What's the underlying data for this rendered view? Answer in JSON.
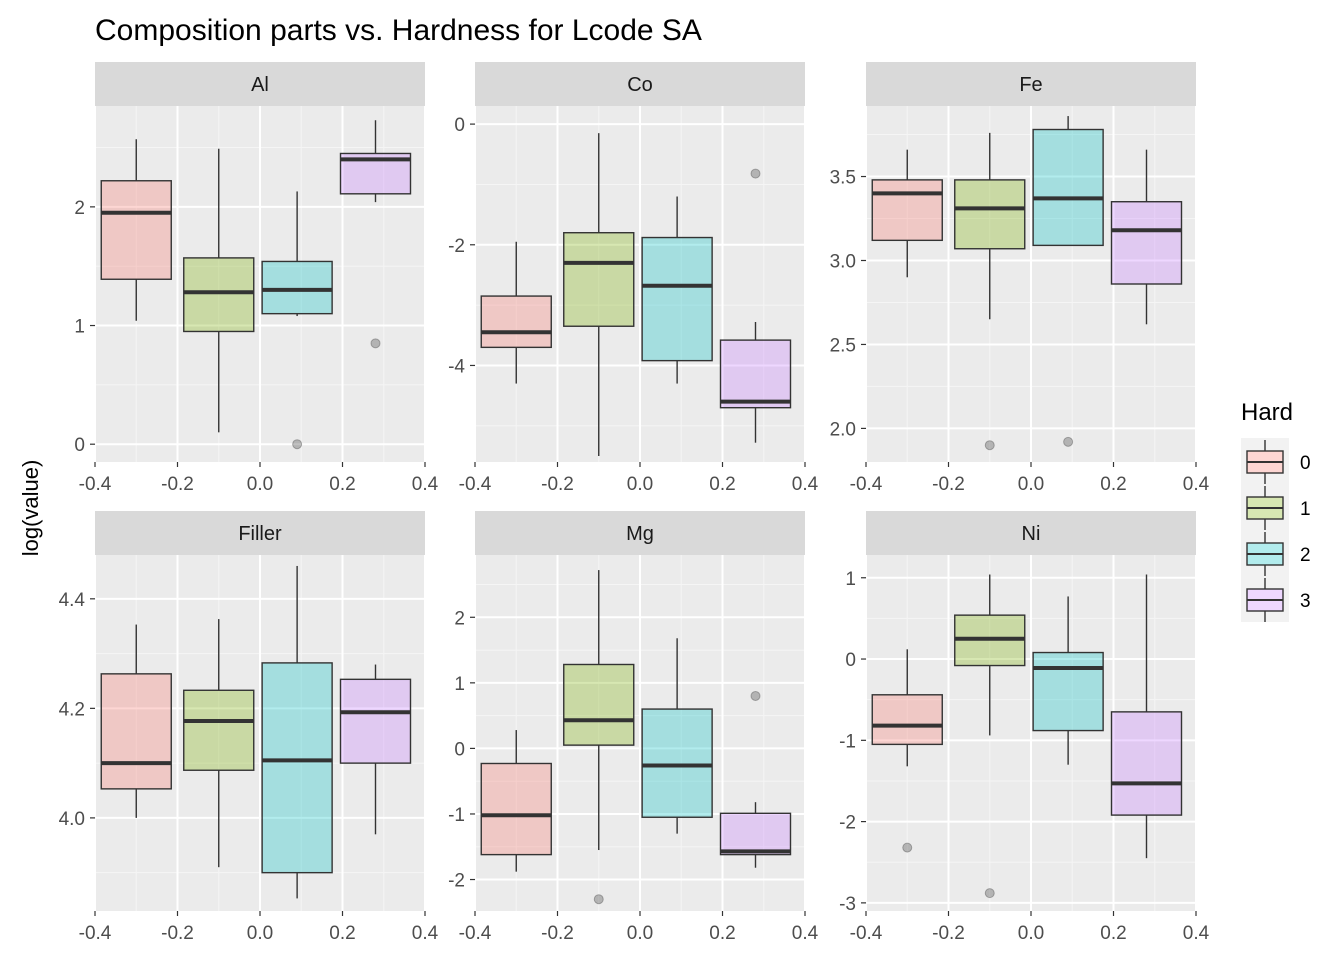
{
  "chart_data": {
    "type": "boxplot",
    "title": "Composition parts vs. Hardness for Lcode SA",
    "ylabel": "log(value)",
    "xlabel": "",
    "x_ticks": [
      "-0.4",
      "-0.2",
      "0.0",
      "0.2",
      "0.4"
    ],
    "xlim": [
      -0.4,
      0.4
    ],
    "grid": true,
    "legend": {
      "title": "Hard",
      "position": "right",
      "entries": [
        {
          "label": "0",
          "color": "#F8766D"
        },
        {
          "label": "1",
          "color": "#7CAE00"
        },
        {
          "label": "2",
          "color": "#00BFC4"
        },
        {
          "label": "3",
          "color": "#C77CFF"
        }
      ]
    },
    "box_x": [
      -0.3,
      -0.1,
      0.09,
      0.28
    ],
    "panels": [
      {
        "label": "Al",
        "ylim": [
          -0.15,
          2.85
        ],
        "y_ticks": [
          0,
          1,
          2
        ],
        "y_tick_labels": [
          "0",
          "1",
          "2"
        ],
        "boxes": [
          {
            "hard": "0",
            "lower": 1.04,
            "q1": 1.39,
            "median": 1.95,
            "q3": 2.22,
            "upper": 2.57,
            "outliers": []
          },
          {
            "hard": "1",
            "lower": 0.1,
            "q1": 0.95,
            "median": 1.28,
            "q3": 1.57,
            "upper": 2.49,
            "outliers": []
          },
          {
            "hard": "2",
            "lower": 1.08,
            "q1": 1.1,
            "median": 1.3,
            "q3": 1.54,
            "upper": 2.13,
            "outliers": [
              0.0
            ]
          },
          {
            "hard": "3",
            "lower": 2.04,
            "q1": 2.11,
            "median": 2.4,
            "q3": 2.45,
            "upper": 2.73,
            "outliers": [
              0.85
            ]
          }
        ]
      },
      {
        "label": "Co",
        "ylim": [
          -5.6,
          0.3
        ],
        "y_ticks": [
          -4,
          -2,
          0
        ],
        "y_tick_labels": [
          "-4",
          "-2",
          "0"
        ],
        "boxes": [
          {
            "hard": "0",
            "lower": -4.3,
            "q1": -3.7,
            "median": -3.45,
            "q3": -2.85,
            "upper": -1.95,
            "outliers": []
          },
          {
            "hard": "1",
            "lower": -5.5,
            "q1": -3.35,
            "median": -2.3,
            "q3": -1.8,
            "upper": -0.15,
            "outliers": []
          },
          {
            "hard": "2",
            "lower": -4.3,
            "q1": -3.92,
            "median": -2.68,
            "q3": -1.88,
            "upper": -1.2,
            "outliers": []
          },
          {
            "hard": "3",
            "lower": -5.28,
            "q1": -4.7,
            "median": -4.6,
            "q3": -3.58,
            "upper": -3.28,
            "outliers": [
              -0.82
            ]
          }
        ]
      },
      {
        "label": "Fe",
        "ylim": [
          1.8,
          3.92
        ],
        "y_ticks": [
          2.0,
          2.5,
          3.0,
          3.5
        ],
        "y_tick_labels": [
          "2.0",
          "2.5",
          "3.0",
          "3.5"
        ],
        "boxes": [
          {
            "hard": "0",
            "lower": 2.9,
            "q1": 3.12,
            "median": 3.4,
            "q3": 3.48,
            "upper": 3.66,
            "outliers": []
          },
          {
            "hard": "1",
            "lower": 2.65,
            "q1": 3.07,
            "median": 3.31,
            "q3": 3.48,
            "upper": 3.76,
            "outliers": [
              1.9
            ]
          },
          {
            "hard": "2",
            "lower": 3.09,
            "q1": 3.09,
            "median": 3.37,
            "q3": 3.78,
            "upper": 3.86,
            "outliers": [
              1.92
            ]
          },
          {
            "hard": "3",
            "lower": 2.62,
            "q1": 2.86,
            "median": 3.18,
            "q3": 3.35,
            "upper": 3.66,
            "outliers": []
          }
        ]
      },
      {
        "label": "Filler",
        "ylim": [
          3.83,
          4.48
        ],
        "y_ticks": [
          4.0,
          4.2,
          4.4
        ],
        "y_tick_labels": [
          "4.0",
          "4.2",
          "4.4"
        ],
        "boxes": [
          {
            "hard": "0",
            "lower": 4.0,
            "q1": 4.053,
            "median": 4.1,
            "q3": 4.263,
            "upper": 4.353,
            "outliers": []
          },
          {
            "hard": "1",
            "lower": 3.91,
            "q1": 4.087,
            "median": 4.177,
            "q3": 4.233,
            "upper": 4.363,
            "outliers": []
          },
          {
            "hard": "2",
            "lower": 3.853,
            "q1": 3.9,
            "median": 4.105,
            "q3": 4.283,
            "upper": 4.46,
            "outliers": []
          },
          {
            "hard": "3",
            "lower": 3.97,
            "q1": 4.1,
            "median": 4.193,
            "q3": 4.253,
            "upper": 4.28,
            "outliers": []
          }
        ]
      },
      {
        "label": "Mg",
        "ylim": [
          -2.48,
          2.95
        ],
        "y_ticks": [
          -2,
          -1,
          0,
          1,
          2
        ],
        "y_tick_labels": [
          "-2",
          "-1",
          "0",
          "1",
          "2"
        ],
        "boxes": [
          {
            "hard": "0",
            "lower": -1.88,
            "q1": -1.62,
            "median": -1.02,
            "q3": -0.23,
            "upper": 0.28,
            "outliers": []
          },
          {
            "hard": "1",
            "lower": -1.55,
            "q1": 0.05,
            "median": 0.43,
            "q3": 1.28,
            "upper": 2.72,
            "outliers": [
              -2.3
            ]
          },
          {
            "hard": "2",
            "lower": -1.3,
            "q1": -1.05,
            "median": -0.26,
            "q3": 0.6,
            "upper": 1.68,
            "outliers": []
          },
          {
            "hard": "3",
            "lower": -1.82,
            "q1": -1.62,
            "median": -1.57,
            "q3": -0.99,
            "upper": -0.82,
            "outliers": [
              0.8
            ]
          }
        ]
      },
      {
        "label": "Ni",
        "ylim": [
          -3.1,
          1.28
        ],
        "y_ticks": [
          -3,
          -2,
          -1,
          0,
          1
        ],
        "y_tick_labels": [
          "-3",
          "-2",
          "-1",
          "0",
          "1"
        ],
        "boxes": [
          {
            "hard": "0",
            "lower": -1.32,
            "q1": -1.05,
            "median": -0.82,
            "q3": -0.44,
            "upper": 0.12,
            "outliers": [
              -2.32
            ]
          },
          {
            "hard": "1",
            "lower": -0.94,
            "q1": -0.08,
            "median": 0.25,
            "q3": 0.54,
            "upper": 1.04,
            "outliers": [
              -2.88
            ]
          },
          {
            "hard": "2",
            "lower": -1.3,
            "q1": -0.88,
            "median": -0.11,
            "q3": 0.08,
            "upper": 0.77,
            "outliers": []
          },
          {
            "hard": "3",
            "lower": -2.45,
            "q1": -1.92,
            "median": -1.53,
            "q3": -0.65,
            "upper": 1.04,
            "outliers": []
          }
        ]
      }
    ]
  }
}
